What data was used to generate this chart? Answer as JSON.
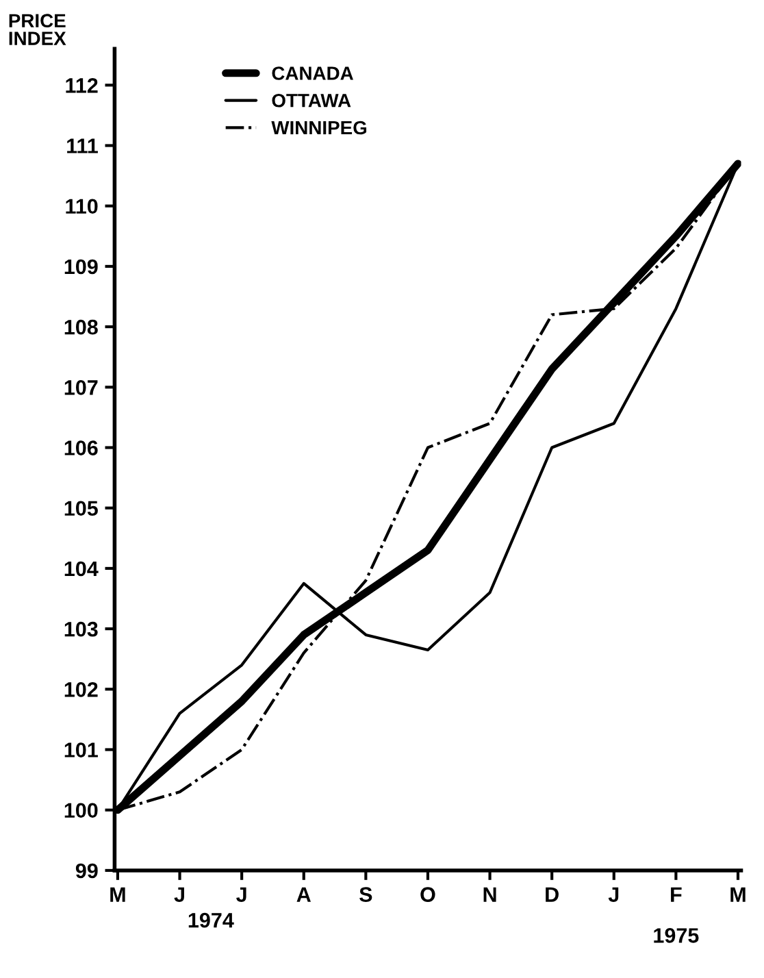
{
  "chart_data": {
    "type": "line",
    "ylabel": "PRICE INDEX",
    "ylim": [
      99,
      112.6
    ],
    "categories": [
      "M",
      "J",
      "J",
      "A",
      "S",
      "O",
      "N",
      "D",
      "J",
      "F",
      "M"
    ],
    "yticks": [
      99,
      100,
      101,
      102,
      103,
      104,
      105,
      106,
      107,
      108,
      109,
      110,
      111,
      112
    ],
    "annotations": [
      "1974",
      "1975"
    ],
    "grid": false,
    "legend": "top left",
    "marker": "none",
    "series": [
      {
        "name": "CANADA",
        "color": "#000000",
        "line_style": "solid",
        "values": [
          100,
          100.9,
          101.8,
          102.9,
          103.6,
          104.3,
          105.8,
          107.3,
          108.4,
          109.5,
          110.7
        ]
      },
      {
        "name": "OTTAWA",
        "color": "#000000",
        "line_style": "solid",
        "values": [
          100,
          101.6,
          102.4,
          103.75,
          102.9,
          102.65,
          103.6,
          106.0,
          106.4,
          108.3,
          110.7
        ]
      },
      {
        "name": "WINNIPEG",
        "color": "#000000",
        "line_style": "dashdot",
        "values": [
          100,
          100.3,
          101.0,
          102.6,
          103.8,
          106.0,
          106.4,
          108.2,
          108.3,
          109.3,
          110.7
        ]
      }
    ]
  }
}
